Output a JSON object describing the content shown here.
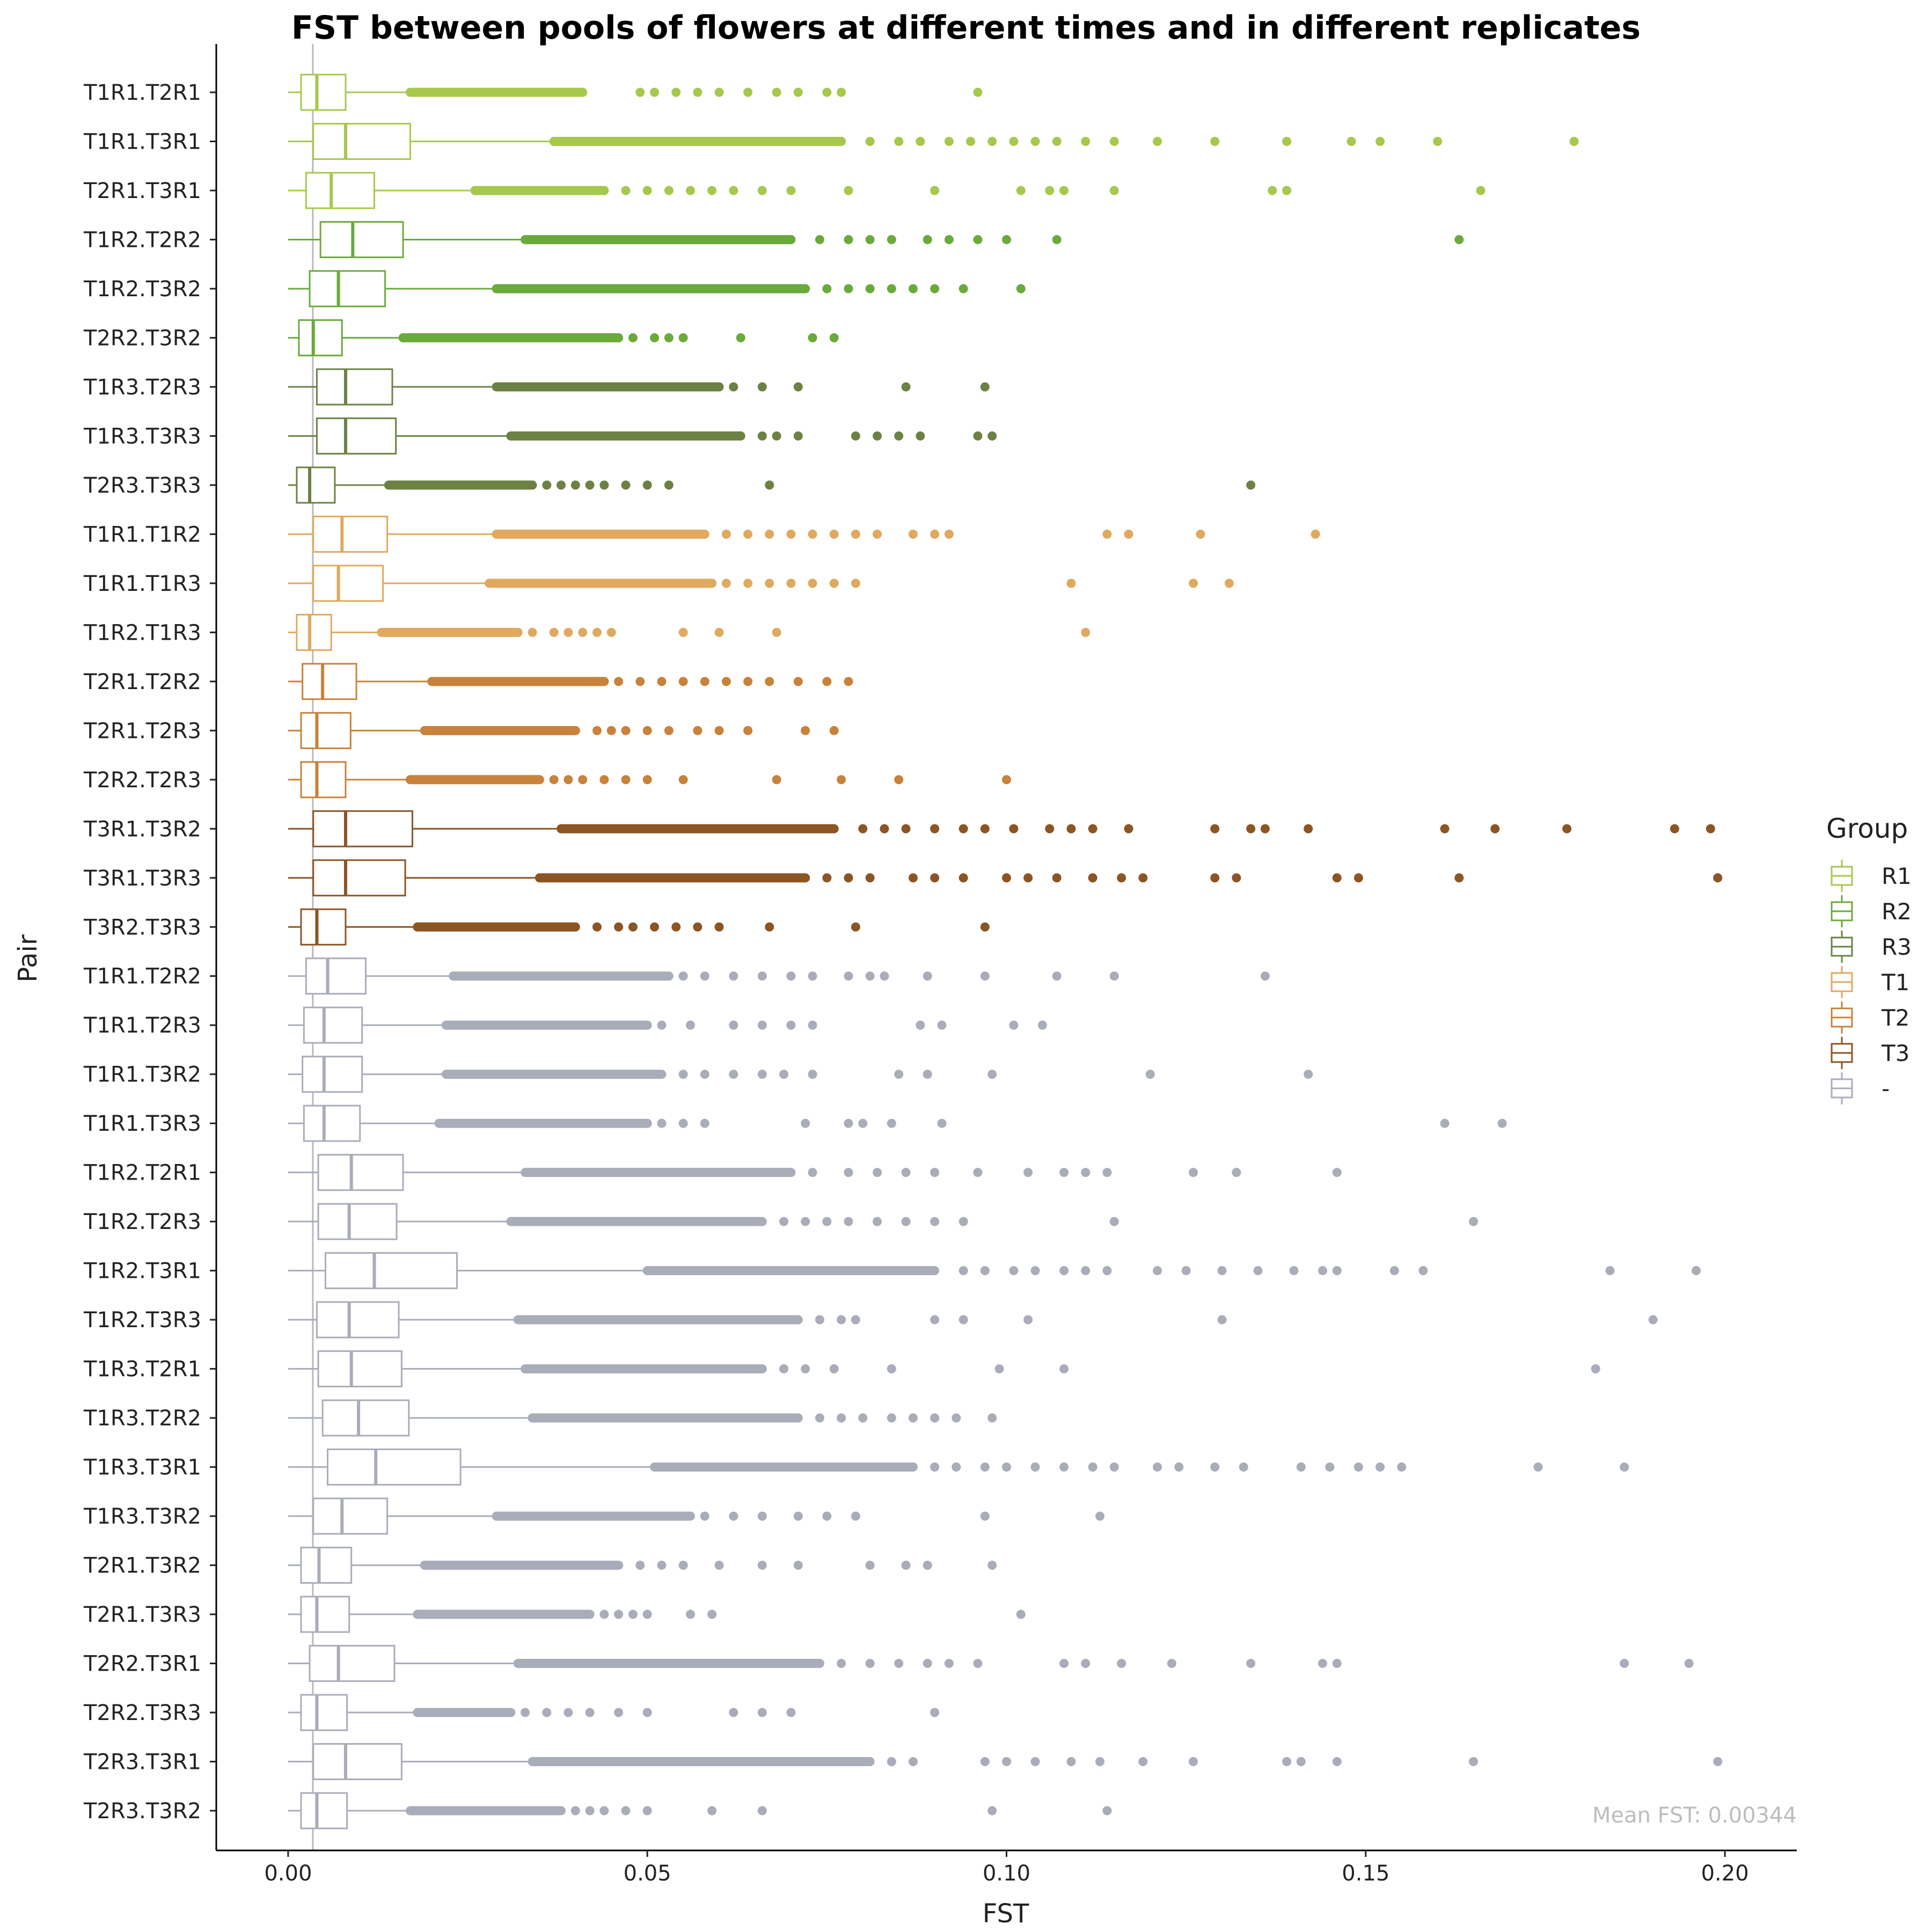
{
  "chart_data": {
    "type": "boxplot",
    "orientation": "horizontal",
    "title": "FST between pools of flowers at different times and in different replicates",
    "xlabel": "FST",
    "ylabel": "Pair",
    "xlim": [
      -0.01,
      0.21
    ],
    "xticks": [
      0.0,
      0.05,
      0.1,
      0.15,
      0.2
    ],
    "xtick_labels": [
      "0.00",
      "0.05",
      "0.10",
      "0.15",
      "0.20"
    ],
    "grid": false,
    "legend": {
      "title": "Group",
      "placement": "right",
      "entries": [
        {
          "label": "R1",
          "color": "#a6c84c"
        },
        {
          "label": "R2",
          "color": "#6aaa3a"
        },
        {
          "label": "R3",
          "color": "#6b8244"
        },
        {
          "label": "T1",
          "color": "#e0a95f"
        },
        {
          "label": "T2",
          "color": "#c8823a"
        },
        {
          "label": "T3",
          "color": "#8b5524"
        },
        {
          "label": "-",
          "color": "#a9adb9"
        }
      ]
    },
    "reference_line": {
      "x": 0.00344,
      "label": "Mean FST: 0.00344"
    },
    "series": [
      {
        "pair": "T1R1.T2R1",
        "group": "R1",
        "q1": 0.0018,
        "median": 0.004,
        "q3": 0.008,
        "wmin": 0.0,
        "wmax": 0.017,
        "outlier_band": [
          0.017,
          0.041
        ],
        "outliers": [
          0.049,
          0.051,
          0.054,
          0.057,
          0.06,
          0.064,
          0.068,
          0.071,
          0.075,
          0.077,
          0.096
        ]
      },
      {
        "pair": "T1R1.T3R1",
        "group": "R1",
        "q1": 0.0035,
        "median": 0.008,
        "q3": 0.017,
        "wmax": 0.037,
        "wmin": 0.0,
        "outlier_band": [
          0.037,
          0.077
        ],
        "outliers": [
          0.081,
          0.085,
          0.088,
          0.092,
          0.095,
          0.098,
          0.101,
          0.104,
          0.107,
          0.111,
          0.115,
          0.121,
          0.129,
          0.139,
          0.148,
          0.152,
          0.16,
          0.179
        ]
      },
      {
        "pair": "T2R1.T3R1",
        "group": "R1",
        "q1": 0.0025,
        "median": 0.006,
        "q3": 0.012,
        "wmax": 0.026,
        "wmin": 0.0,
        "outlier_band": [
          0.026,
          0.044
        ],
        "outliers": [
          0.047,
          0.05,
          0.053,
          0.056,
          0.059,
          0.062,
          0.066,
          0.07,
          0.078,
          0.09,
          0.102,
          0.106,
          0.108,
          0.115,
          0.137,
          0.139,
          0.166
        ]
      },
      {
        "pair": "T1R2.T2R2",
        "group": "R2",
        "q1": 0.0045,
        "median": 0.009,
        "q3": 0.016,
        "wmax": 0.033,
        "wmin": 0.0,
        "outlier_band": [
          0.033,
          0.07
        ],
        "outliers": [
          0.074,
          0.078,
          0.081,
          0.084,
          0.089,
          0.092,
          0.096,
          0.1,
          0.107,
          0.163
        ]
      },
      {
        "pair": "T1R2.T3R2",
        "group": "R2",
        "q1": 0.003,
        "median": 0.007,
        "q3": 0.0135,
        "wmax": 0.029,
        "wmin": 0.0,
        "outlier_band": [
          0.029,
          0.072
        ],
        "outliers": [
          0.075,
          0.078,
          0.081,
          0.084,
          0.087,
          0.09,
          0.094,
          0.102
        ]
      },
      {
        "pair": "T2R2.T3R2",
        "group": "R2",
        "q1": 0.0015,
        "median": 0.0035,
        "q3": 0.0075,
        "wmax": 0.016,
        "wmin": 0.0,
        "outlier_band": [
          0.016,
          0.046
        ],
        "outliers": [
          0.048,
          0.051,
          0.053,
          0.055,
          0.063,
          0.073,
          0.076
        ]
      },
      {
        "pair": "T1R3.T2R3",
        "group": "R3",
        "q1": 0.004,
        "median": 0.008,
        "q3": 0.0145,
        "wmax": 0.029,
        "wmin": 0.0,
        "outlier_band": [
          0.029,
          0.06
        ],
        "outliers": [
          0.062,
          0.066,
          0.071,
          0.086,
          0.097
        ]
      },
      {
        "pair": "T1R3.T3R3",
        "group": "R3",
        "q1": 0.004,
        "median": 0.008,
        "q3": 0.015,
        "wmax": 0.031,
        "wmin": 0.0,
        "outlier_band": [
          0.031,
          0.063
        ],
        "outliers": [
          0.066,
          0.068,
          0.071,
          0.079,
          0.082,
          0.085,
          0.088,
          0.096,
          0.098
        ]
      },
      {
        "pair": "T2R3.T3R3",
        "group": "R3",
        "q1": 0.0012,
        "median": 0.003,
        "q3": 0.0065,
        "wmax": 0.014,
        "wmin": 0.0,
        "outlier_band": [
          0.014,
          0.034
        ],
        "outliers": [
          0.036,
          0.038,
          0.04,
          0.042,
          0.044,
          0.047,
          0.05,
          0.053,
          0.067,
          0.134
        ]
      },
      {
        "pair": "T1R1.T1R2",
        "group": "T1",
        "q1": 0.0035,
        "median": 0.0075,
        "q3": 0.0138,
        "wmax": 0.029,
        "wmin": 0.0,
        "outlier_band": [
          0.029,
          0.058
        ],
        "outliers": [
          0.061,
          0.064,
          0.067,
          0.07,
          0.073,
          0.076,
          0.079,
          0.082,
          0.087,
          0.09,
          0.092,
          0.114,
          0.117,
          0.127,
          0.143
        ]
      },
      {
        "pair": "T1R1.T1R3",
        "group": "T1",
        "q1": 0.0035,
        "median": 0.007,
        "q3": 0.0132,
        "wmax": 0.028,
        "wmin": 0.0,
        "outlier_band": [
          0.028,
          0.059
        ],
        "outliers": [
          0.061,
          0.064,
          0.067,
          0.07,
          0.073,
          0.076,
          0.079,
          0.109,
          0.126,
          0.131
        ]
      },
      {
        "pair": "T1R2.T1R3",
        "group": "T1",
        "q1": 0.0012,
        "median": 0.003,
        "q3": 0.006,
        "wmax": 0.013,
        "wmin": 0.0,
        "outlier_band": [
          0.013,
          0.032
        ],
        "outliers": [
          0.034,
          0.037,
          0.039,
          0.041,
          0.043,
          0.045,
          0.055,
          0.06,
          0.068,
          0.111
        ]
      },
      {
        "pair": "T2R1.T2R2",
        "group": "T2",
        "q1": 0.002,
        "median": 0.0048,
        "q3": 0.0095,
        "wmax": 0.02,
        "wmin": 0.0,
        "outlier_band": [
          0.02,
          0.044
        ],
        "outliers": [
          0.046,
          0.049,
          0.052,
          0.055,
          0.058,
          0.061,
          0.064,
          0.067,
          0.071,
          0.075,
          0.078
        ]
      },
      {
        "pair": "T2R1.T2R3",
        "group": "T2",
        "q1": 0.0018,
        "median": 0.004,
        "q3": 0.0087,
        "wmax": 0.019,
        "wmin": 0.0,
        "outlier_band": [
          0.019,
          0.04
        ],
        "outliers": [
          0.043,
          0.045,
          0.047,
          0.05,
          0.053,
          0.057,
          0.06,
          0.064,
          0.072,
          0.076
        ]
      },
      {
        "pair": "T2R2.T2R3",
        "group": "T2",
        "q1": 0.0018,
        "median": 0.004,
        "q3": 0.008,
        "wmax": 0.017,
        "wmin": 0.0,
        "outlier_band": [
          0.017,
          0.035
        ],
        "outliers": [
          0.037,
          0.039,
          0.041,
          0.044,
          0.047,
          0.05,
          0.055,
          0.068,
          0.077,
          0.085,
          0.1
        ]
      },
      {
        "pair": "T3R1.T3R2",
        "group": "T3",
        "q1": 0.0035,
        "median": 0.008,
        "q3": 0.0173,
        "wmax": 0.038,
        "wmin": 0.0,
        "outlier_band": [
          0.038,
          0.076
        ],
        "outliers": [
          0.08,
          0.083,
          0.086,
          0.09,
          0.094,
          0.097,
          0.101,
          0.106,
          0.109,
          0.112,
          0.117,
          0.129,
          0.134,
          0.136,
          0.142,
          0.161,
          0.168,
          0.178,
          0.193,
          0.198
        ]
      },
      {
        "pair": "T3R1.T3R3",
        "group": "T3",
        "q1": 0.0035,
        "median": 0.008,
        "q3": 0.0163,
        "wmax": 0.035,
        "wmin": 0.0,
        "outlier_band": [
          0.035,
          0.072
        ],
        "outliers": [
          0.075,
          0.078,
          0.081,
          0.087,
          0.09,
          0.094,
          0.1,
          0.103,
          0.107,
          0.112,
          0.116,
          0.119,
          0.129,
          0.132,
          0.146,
          0.149,
          0.163,
          0.199
        ]
      },
      {
        "pair": "T3R2.T3R3",
        "group": "T3",
        "q1": 0.0018,
        "median": 0.004,
        "q3": 0.008,
        "wmax": 0.018,
        "wmin": 0.0,
        "outlier_band": [
          0.018,
          0.04
        ],
        "outliers": [
          0.043,
          0.046,
          0.048,
          0.051,
          0.054,
          0.057,
          0.06,
          0.067,
          0.079,
          0.097
        ]
      },
      {
        "pair": "T1R1.T2R2",
        "group": "-",
        "q1": 0.0025,
        "median": 0.0055,
        "q3": 0.0108,
        "wmax": 0.023,
        "wmin": 0.0,
        "outlier_band": [
          0.023,
          0.053
        ],
        "outliers": [
          0.055,
          0.058,
          0.062,
          0.066,
          0.07,
          0.073,
          0.078,
          0.081,
          0.083,
          0.089,
          0.097,
          0.107,
          0.115,
          0.136
        ]
      },
      {
        "pair": "T1R1.T2R3",
        "group": "-",
        "q1": 0.0022,
        "median": 0.005,
        "q3": 0.0103,
        "wmax": 0.022,
        "wmin": 0.0,
        "outlier_band": [
          0.022,
          0.05
        ],
        "outliers": [
          0.052,
          0.056,
          0.062,
          0.066,
          0.07,
          0.073,
          0.088,
          0.091,
          0.101,
          0.105
        ]
      },
      {
        "pair": "T1R1.T3R2",
        "group": "-",
        "q1": 0.002,
        "median": 0.005,
        "q3": 0.0103,
        "wmax": 0.022,
        "wmin": 0.0,
        "outlier_band": [
          0.022,
          0.052
        ],
        "outliers": [
          0.055,
          0.058,
          0.062,
          0.066,
          0.069,
          0.073,
          0.085,
          0.089,
          0.098,
          0.12,
          0.142
        ]
      },
      {
        "pair": "T1R1.T3R3",
        "group": "-",
        "q1": 0.0022,
        "median": 0.005,
        "q3": 0.01,
        "wmax": 0.021,
        "wmin": 0.0,
        "outlier_band": [
          0.021,
          0.05
        ],
        "outliers": [
          0.052,
          0.055,
          0.058,
          0.072,
          0.078,
          0.08,
          0.084,
          0.091,
          0.161,
          0.169
        ]
      },
      {
        "pair": "T1R2.T2R1",
        "group": "-",
        "q1": 0.0042,
        "median": 0.0088,
        "q3": 0.016,
        "wmax": 0.033,
        "wmin": 0.0,
        "outlier_band": [
          0.033,
          0.07
        ],
        "outliers": [
          0.073,
          0.078,
          0.082,
          0.086,
          0.09,
          0.096,
          0.103,
          0.108,
          0.111,
          0.114,
          0.126,
          0.132,
          0.146
        ]
      },
      {
        "pair": "T1R2.T2R3",
        "group": "-",
        "q1": 0.0042,
        "median": 0.0085,
        "q3": 0.0151,
        "wmax": 0.031,
        "wmin": 0.0,
        "outlier_band": [
          0.031,
          0.066
        ],
        "outliers": [
          0.069,
          0.072,
          0.075,
          0.078,
          0.082,
          0.086,
          0.09,
          0.094,
          0.115,
          0.165
        ]
      },
      {
        "pair": "T1R2.T3R1",
        "group": "-",
        "q1": 0.0052,
        "median": 0.012,
        "q3": 0.0235,
        "wmax": 0.05,
        "wmin": 0.0,
        "outlier_band": [
          0.05,
          0.09
        ],
        "outliers": [
          0.094,
          0.097,
          0.101,
          0.104,
          0.108,
          0.111,
          0.114,
          0.121,
          0.125,
          0.13,
          0.135,
          0.14,
          0.144,
          0.146,
          0.154,
          0.158,
          0.184,
          0.196
        ]
      },
      {
        "pair": "T1R2.T3R3",
        "group": "-",
        "q1": 0.004,
        "median": 0.0085,
        "q3": 0.0154,
        "wmax": 0.032,
        "wmin": 0.0,
        "outlier_band": [
          0.032,
          0.071
        ],
        "outliers": [
          0.074,
          0.077,
          0.079,
          0.09,
          0.094,
          0.103,
          0.13,
          0.19
        ]
      },
      {
        "pair": "T1R3.T2R1",
        "group": "-",
        "q1": 0.0042,
        "median": 0.0088,
        "q3": 0.0158,
        "wmax": 0.033,
        "wmin": 0.0,
        "outlier_band": [
          0.033,
          0.066
        ],
        "outliers": [
          0.069,
          0.072,
          0.076,
          0.084,
          0.099,
          0.108,
          0.182
        ]
      },
      {
        "pair": "T1R3.T2R2",
        "group": "-",
        "q1": 0.0048,
        "median": 0.0098,
        "q3": 0.0168,
        "wmax": 0.034,
        "wmin": 0.0,
        "outlier_band": [
          0.034,
          0.071
        ],
        "outliers": [
          0.074,
          0.077,
          0.08,
          0.084,
          0.087,
          0.09,
          0.093,
          0.098
        ]
      },
      {
        "pair": "T1R3.T3R1",
        "group": "-",
        "q1": 0.0055,
        "median": 0.0122,
        "q3": 0.024,
        "wmax": 0.051,
        "wmin": 0.0,
        "outlier_band": [
          0.051,
          0.087
        ],
        "outliers": [
          0.09,
          0.093,
          0.097,
          0.1,
          0.104,
          0.108,
          0.112,
          0.115,
          0.121,
          0.124,
          0.129,
          0.133,
          0.141,
          0.145,
          0.149,
          0.152,
          0.155,
          0.174,
          0.186
        ]
      },
      {
        "pair": "T1R3.T3R2",
        "group": "-",
        "q1": 0.0035,
        "median": 0.0075,
        "q3": 0.0138,
        "wmax": 0.029,
        "wmin": 0.0,
        "outlier_band": [
          0.029,
          0.056
        ],
        "outliers": [
          0.058,
          0.062,
          0.066,
          0.071,
          0.075,
          0.079,
          0.097,
          0.113
        ]
      },
      {
        "pair": "T2R1.T3R2",
        "group": "-",
        "q1": 0.0018,
        "median": 0.0043,
        "q3": 0.0088,
        "wmax": 0.019,
        "wmin": 0.0,
        "outlier_band": [
          0.019,
          0.046
        ],
        "outliers": [
          0.049,
          0.052,
          0.055,
          0.06,
          0.066,
          0.071,
          0.081,
          0.086,
          0.089,
          0.098
        ]
      },
      {
        "pair": "T2R1.T3R3",
        "group": "-",
        "q1": 0.0018,
        "median": 0.004,
        "q3": 0.0085,
        "wmax": 0.018,
        "wmin": 0.0,
        "outlier_band": [
          0.018,
          0.042
        ],
        "outliers": [
          0.044,
          0.046,
          0.048,
          0.05,
          0.056,
          0.059,
          0.102
        ]
      },
      {
        "pair": "T2R2.T3R1",
        "group": "-",
        "q1": 0.003,
        "median": 0.007,
        "q3": 0.0148,
        "wmax": 0.032,
        "wmin": 0.0,
        "outlier_band": [
          0.032,
          0.074
        ],
        "outliers": [
          0.077,
          0.081,
          0.085,
          0.089,
          0.092,
          0.096,
          0.108,
          0.111,
          0.116,
          0.123,
          0.134,
          0.144,
          0.146,
          0.186,
          0.195
        ]
      },
      {
        "pair": "T2R2.T3R3",
        "group": "-",
        "q1": 0.0018,
        "median": 0.004,
        "q3": 0.0082,
        "wmax": 0.018,
        "wmin": 0.0,
        "outlier_band": [
          0.018,
          0.031
        ],
        "outliers": [
          0.033,
          0.036,
          0.039,
          0.042,
          0.046,
          0.05,
          0.062,
          0.066,
          0.07,
          0.09
        ]
      },
      {
        "pair": "T2R3.T3R1",
        "group": "-",
        "q1": 0.0035,
        "median": 0.008,
        "q3": 0.0158,
        "wmax": 0.034,
        "wmin": 0.0,
        "outlier_band": [
          0.034,
          0.081
        ],
        "outliers": [
          0.084,
          0.087,
          0.097,
          0.1,
          0.104,
          0.109,
          0.113,
          0.119,
          0.126,
          0.139,
          0.141,
          0.146,
          0.165,
          0.199
        ]
      },
      {
        "pair": "T2R3.T3R2",
        "group": "-",
        "q1": 0.0018,
        "median": 0.004,
        "q3": 0.0082,
        "wmax": 0.017,
        "wmin": 0.0,
        "outlier_band": [
          0.017,
          0.038
        ],
        "outliers": [
          0.04,
          0.042,
          0.044,
          0.047,
          0.05,
          0.059,
          0.066,
          0.098,
          0.114
        ]
      }
    ]
  }
}
